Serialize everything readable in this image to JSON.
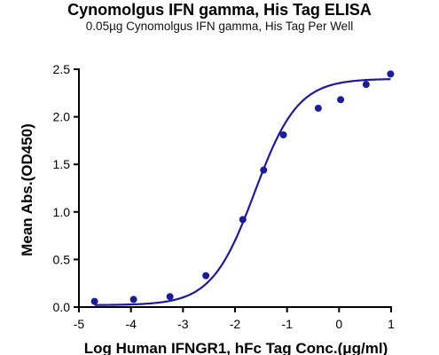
{
  "chart_data": {
    "type": "scatter",
    "title": "Cynomolgus IFN gamma, His Tag ELISA",
    "subtitle": "0.05µg Cynomolgus IFN gamma, His Tag Per Well",
    "xlabel": "Log Human IFNGR1, hFc Tag Conc.(μg/ml)",
    "ylabel": "Mean Abs.(OD450)",
    "xlim": [
      -5,
      1
    ],
    "ylim": [
      0,
      2.5
    ],
    "x_ticks": [
      "-5",
      "-4",
      "-3",
      "-2",
      "-1",
      "0",
      "1"
    ],
    "y_ticks": [
      "0.0",
      "0.5",
      "1.0",
      "1.5",
      "2.0",
      "2.5"
    ],
    "grid": false,
    "series": [
      {
        "points": [
          {
            "x": -4.7,
            "y": 0.06
          },
          {
            "x": -3.95,
            "y": 0.08
          },
          {
            "x": -3.25,
            "y": 0.11
          },
          {
            "x": -2.56,
            "y": 0.33
          },
          {
            "x": -1.85,
            "y": 0.92
          },
          {
            "x": -1.45,
            "y": 1.44
          },
          {
            "x": -1.07,
            "y": 1.81
          },
          {
            "x": -0.4,
            "y": 2.09
          },
          {
            "x": 0.03,
            "y": 2.18
          },
          {
            "x": 0.52,
            "y": 2.34
          },
          {
            "x": 0.99,
            "y": 2.45
          }
        ],
        "fit": {
          "bottom": 0.02,
          "top": 2.4,
          "logEC50": -1.62,
          "hillslope": 1.05
        },
        "color": "#1c1c96"
      }
    ]
  }
}
